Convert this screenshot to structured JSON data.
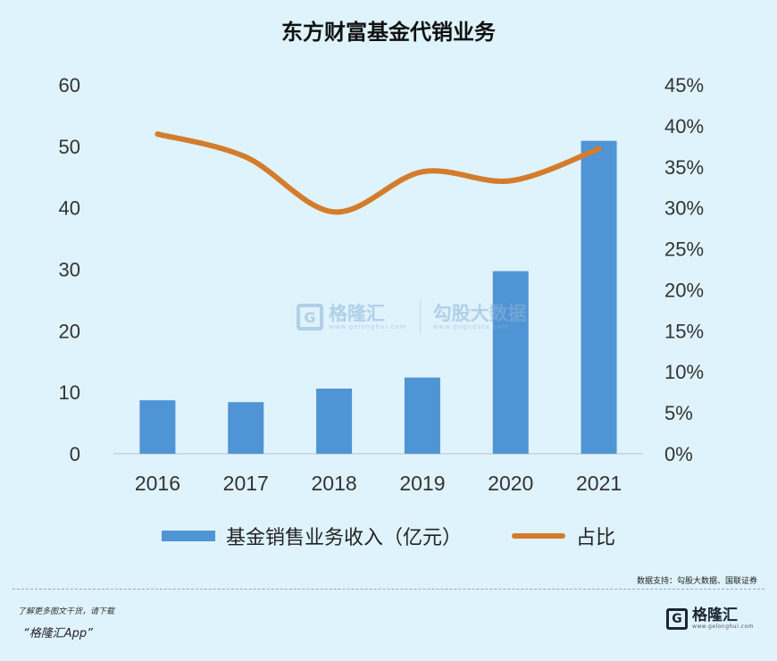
{
  "title": "东方财富基金代销业务",
  "chart_data": {
    "type": "bar",
    "categories": [
      "2016",
      "2017",
      "2018",
      "2019",
      "2020",
      "2021"
    ],
    "series": [
      {
        "name": "基金销售业务收入（亿元）",
        "type": "bar",
        "axis": "left",
        "values": [
          8.7,
          8.4,
          10.6,
          12.4,
          29.7,
          50.9
        ],
        "color": "#4f94d4"
      },
      {
        "name": "占比",
        "type": "line",
        "axis": "right",
        "values": [
          39.0,
          36.2,
          29.5,
          34.4,
          33.3,
          37.2
        ],
        "color": "#d47c2c"
      }
    ],
    "y_left": {
      "ticks": [
        "60",
        "50",
        "40",
        "30",
        "20",
        "10",
        "0"
      ],
      "min": 0,
      "max": 60
    },
    "y_right": {
      "ticks": [
        "45%",
        "40%",
        "35%",
        "30%",
        "25%",
        "20%",
        "15%",
        "10%",
        "5%",
        "0%"
      ],
      "min": 0,
      "max": 45
    },
    "grid": false,
    "legend_position": "bottom"
  },
  "watermark": {
    "brand": "格隆汇",
    "brand_url": "www.gelonghui.com",
    "partner": "勾股大数据",
    "partner_url": "www.gogudata.com"
  },
  "source": "数据支持：勾股大数据、国联证券",
  "footer": {
    "note": "了解更多图文干货，请下载",
    "app": "“格隆汇App”"
  },
  "brand": {
    "logo": "G",
    "name": "格隆汇",
    "url": "www.gelonghui.com"
  }
}
